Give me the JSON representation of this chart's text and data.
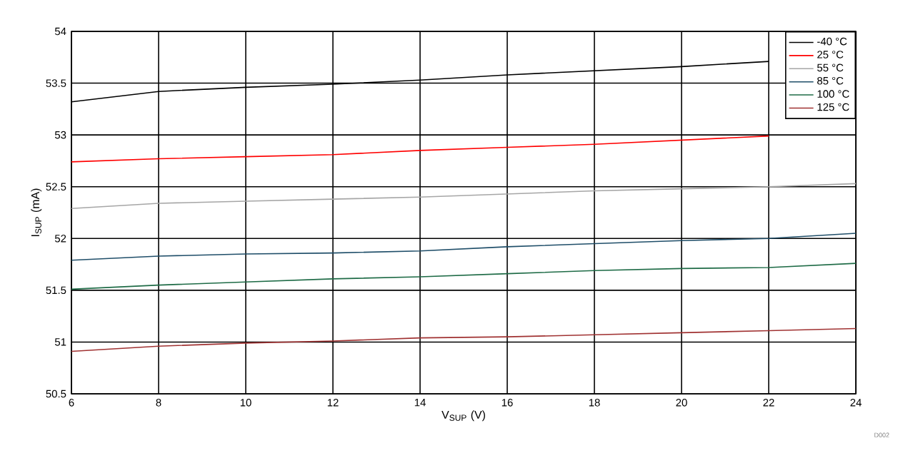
{
  "chart_data": {
    "type": "line",
    "xlabel": "V$_{SUP}$ (V)",
    "ylabel": "I$_{SUP}$ (mA)",
    "x": [
      6,
      8,
      10,
      12,
      14,
      16,
      18,
      20,
      22,
      24
    ],
    "series": [
      {
        "name": "-40 °C",
        "color": "#000000",
        "values": [
          53.32,
          53.42,
          53.46,
          53.49,
          53.53,
          53.58,
          53.62,
          53.66,
          53.71,
          null
        ]
      },
      {
        "name": "25 °C",
        "color": "#ff0000",
        "values": [
          52.74,
          52.77,
          52.79,
          52.81,
          52.85,
          52.88,
          52.91,
          52.95,
          52.99,
          null
        ]
      },
      {
        "name": "55 °C",
        "color": "#a6a6a6",
        "values": [
          52.29,
          52.34,
          52.36,
          52.38,
          52.4,
          52.43,
          52.46,
          52.48,
          52.5,
          52.53
        ]
      },
      {
        "name": "85 °C",
        "color": "#1f4e69",
        "values": [
          51.79,
          51.83,
          51.85,
          51.86,
          51.88,
          51.92,
          51.95,
          51.98,
          52.0,
          52.05
        ]
      },
      {
        "name": "100 °C",
        "color": "#1e6b46",
        "values": [
          51.51,
          51.55,
          51.58,
          51.61,
          51.63,
          51.66,
          51.69,
          51.71,
          51.72,
          51.76
        ]
      },
      {
        "name": "125 °C",
        "color": "#a03232",
        "values": [
          50.91,
          50.96,
          50.99,
          51.01,
          51.04,
          51.05,
          51.07,
          51.09,
          51.11,
          51.13
        ]
      }
    ],
    "xlim": [
      6,
      24
    ],
    "xticks": [
      6,
      8,
      10,
      12,
      14,
      16,
      18,
      20,
      22,
      24
    ],
    "ylim": [
      50.5,
      54
    ],
    "yticks": [
      50.5,
      51,
      51.5,
      52,
      52.5,
      53,
      53.5,
      54
    ],
    "grid": true,
    "legend": "top right",
    "marker": "none",
    "line_style": "solid",
    "annotations": [
      "D002"
    ]
  }
}
